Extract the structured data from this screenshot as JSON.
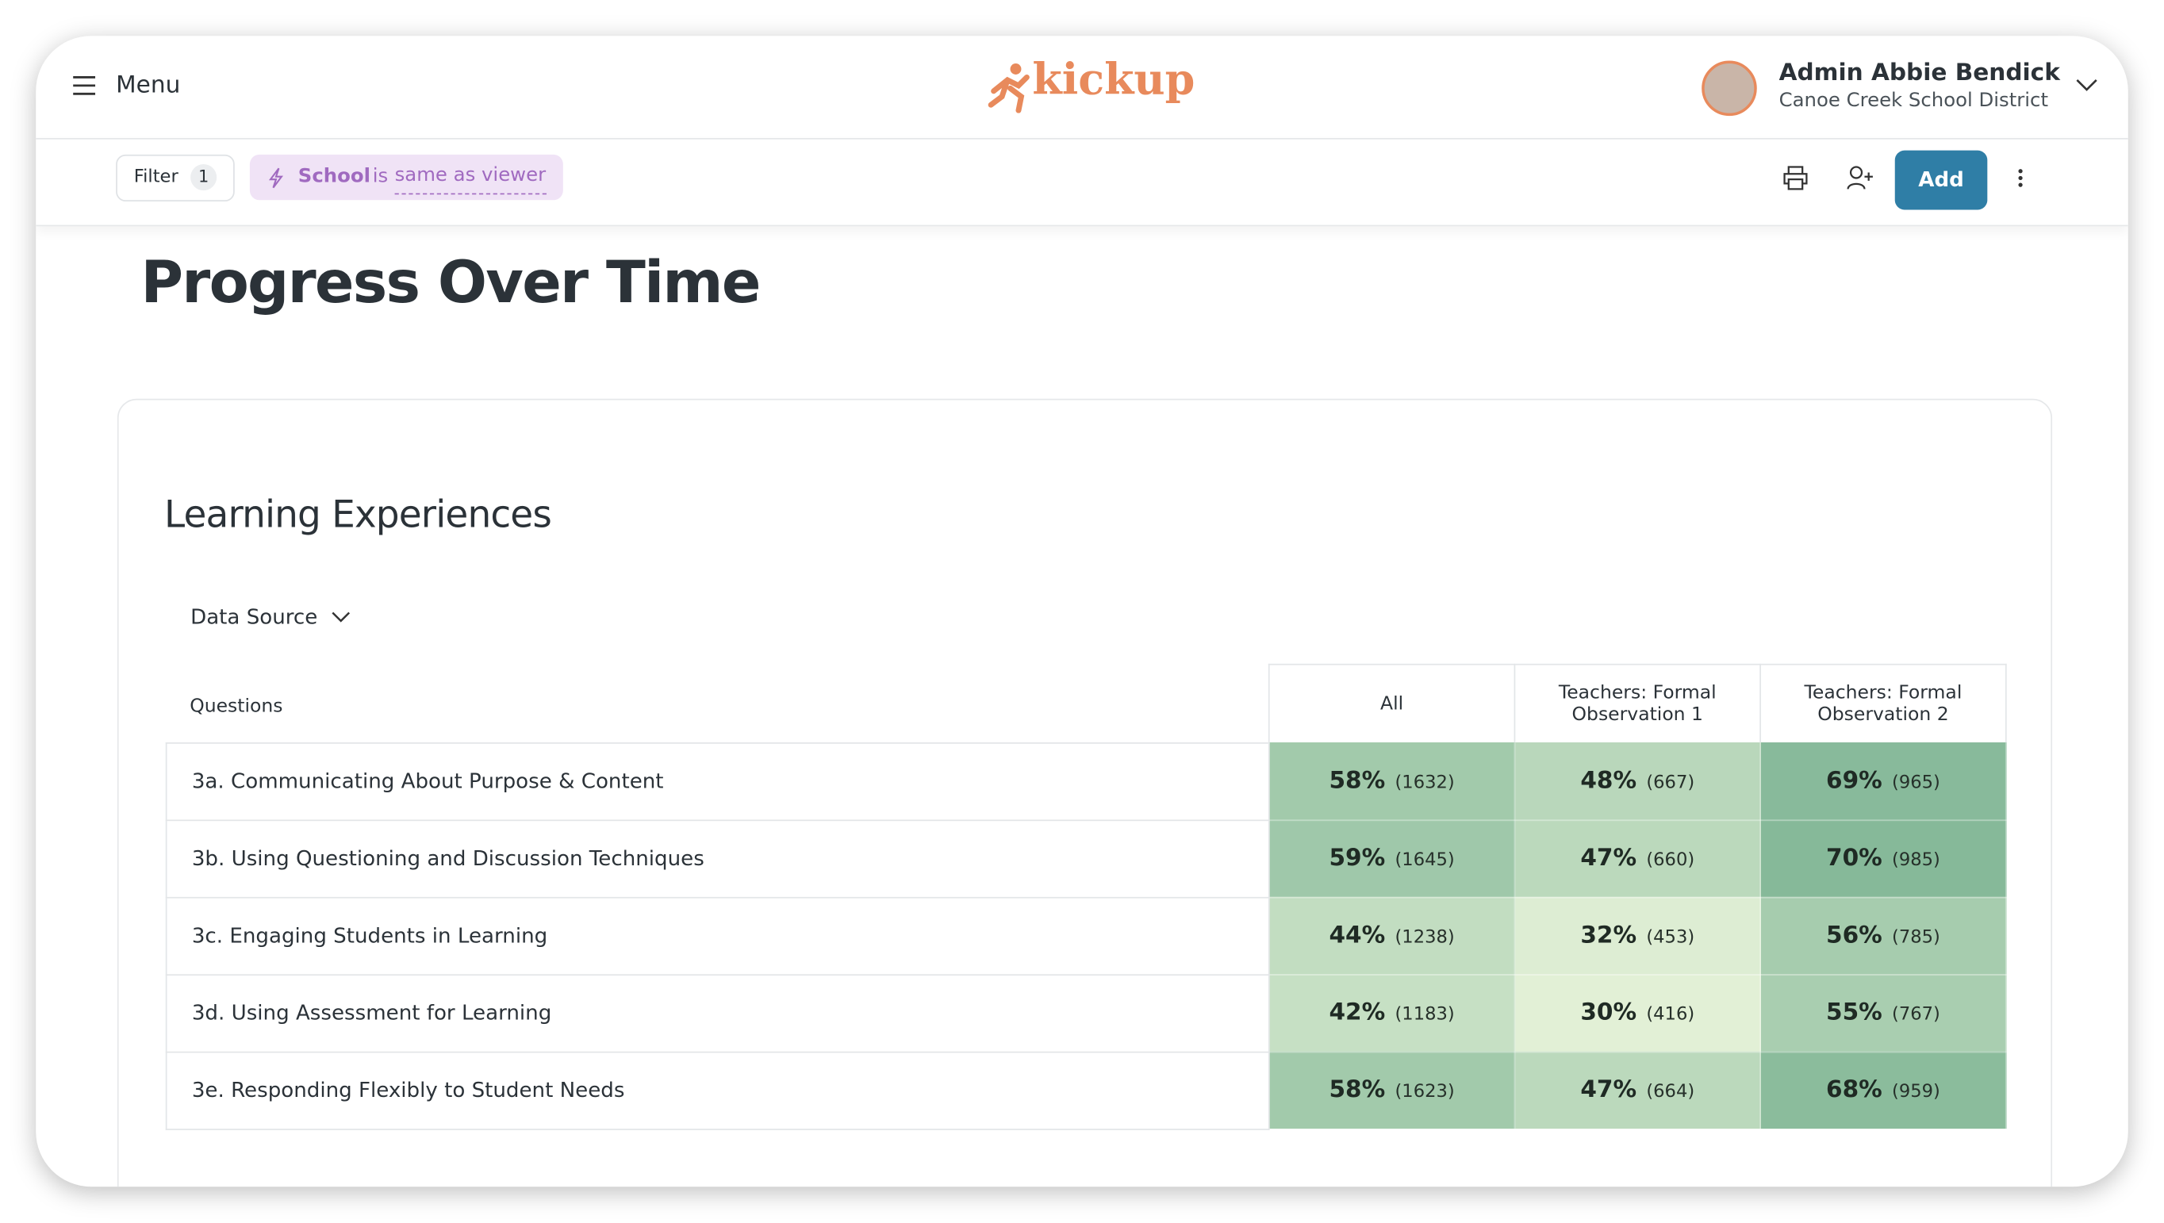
{
  "header": {
    "menu": "Menu",
    "logo": "kickup",
    "user_name": "Admin Abbie Bendick",
    "user_org": "Canoe Creek School District"
  },
  "toolbar": {
    "filter": "Filter",
    "filter_count": "1",
    "chip_field": "School",
    "chip_op": "is",
    "chip_value": "same as viewer",
    "add": "Add"
  },
  "page": {
    "title": "Progress Over Time"
  },
  "card": {
    "title": "Learning Experiences",
    "data_source": "Data Source"
  },
  "table": {
    "columns": [
      "Questions",
      "All",
      "Teachers: Formal Observation 1",
      "Teachers: Formal Observation 2"
    ],
    "rows": [
      {
        "question": "3a. Communicating About Purpose & Content",
        "cells": [
          {
            "pct": "58%",
            "n": "(1632)"
          },
          {
            "pct": "48%",
            "n": "(667)"
          },
          {
            "pct": "69%",
            "n": "(965)"
          }
        ]
      },
      {
        "question": "3b. Using Questioning and Discussion Techniques",
        "cells": [
          {
            "pct": "59%",
            "n": "(1645)"
          },
          {
            "pct": "47%",
            "n": "(660)"
          },
          {
            "pct": "70%",
            "n": "(985)"
          }
        ]
      },
      {
        "question": "3c. Engaging Students in Learning",
        "cells": [
          {
            "pct": "44%",
            "n": "(1238)"
          },
          {
            "pct": "32%",
            "n": "(453)"
          },
          {
            "pct": "56%",
            "n": "(785)"
          }
        ]
      },
      {
        "question": "3d. Using Assessment for Learning",
        "cells": [
          {
            "pct": "42%",
            "n": "(1183)"
          },
          {
            "pct": "30%",
            "n": "(416)"
          },
          {
            "pct": "55%",
            "n": "(767)"
          }
        ]
      },
      {
        "question": "3e. Responding Flexibly to Student Needs",
        "cells": [
          {
            "pct": "58%",
            "n": "(1623)"
          },
          {
            "pct": "47%",
            "n": "(664)"
          },
          {
            "pct": "68%",
            "n": "(959)"
          }
        ]
      }
    ]
  }
}
